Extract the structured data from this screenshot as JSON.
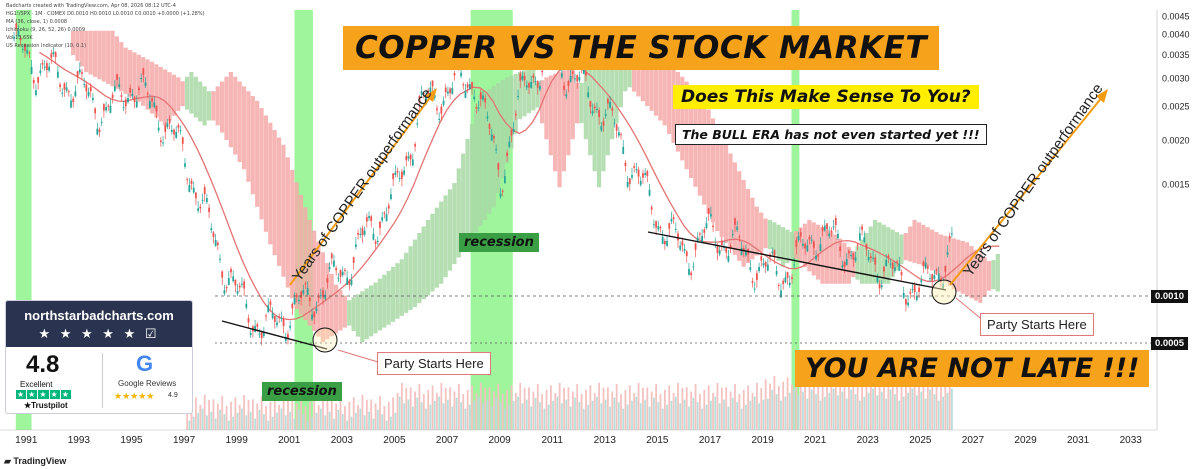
{
  "header": {
    "line1": "Badcharts created with TradingView.com, Apr 08, 2026 08:12 UTC-4",
    "line2": "HG1!/SPX · 1M · COMEX  D0.0010  H0.0010  L0.0010  C0.0010  +0.0000 (+1.28%)",
    "line3": "MA (36, close, 1)  0.0008",
    "line4": "Ichimoku (9, 26, 52, 26)  0.0009",
    "line5": "Vol  13.65K",
    "line6": "US Recession Indicator (10, 0.1)"
  },
  "annotations": {
    "title": "COPPER VS THE STOCK MARKET",
    "question": "Does This Make Sense To You?",
    "bull_note": "The BULL ERA has not even started yet !!!",
    "not_late": "YOU ARE NOT LATE !!!",
    "outperf_left": "Years of COPPER outperformance",
    "outperf_right": "Years of COPPER outperformance",
    "party_left": "Party Starts Here",
    "party_right": "Party Starts Here",
    "recession_2008": "recession",
    "recession_2001": "recession"
  },
  "price_tags": {
    "upper": "0.0010",
    "lower": "0.0005"
  },
  "badge": {
    "site": "northstarbadcharts.com",
    "stars": "★ ★ ★ ★ ★ ☑",
    "score": "4.8",
    "rating_word": "Excellent",
    "trustpilot": "★Trustpilot",
    "google": "G",
    "google_reviews": "Google Reviews",
    "google_score": "4.9"
  },
  "footer": {
    "brand": "TradingView"
  },
  "colors": {
    "candle_up": "#26a69a",
    "candle_down": "#ef5350",
    "cloud_bear": "#f6a9a9",
    "cloud_bull": "#a8d8a6",
    "recession": "#7ef17a",
    "ma": "#e57373",
    "arrow": "#f39c12"
  },
  "chart_data": {
    "type": "line",
    "series_name": "HG1!/SPX",
    "x": [
      1990.5,
      1991,
      1992,
      1993,
      1994,
      1995,
      1996,
      1997,
      1998,
      1999,
      2000,
      2001,
      2002,
      2003,
      2004,
      2005,
      2006,
      2007,
      2008,
      2009,
      2010,
      2011,
      2012,
      2013,
      2014,
      2015,
      2016,
      2017,
      2018,
      2019,
      2020,
      2021,
      2022,
      2023,
      2024,
      2025,
      2026.2
    ],
    "y": [
      0.0038,
      0.0034,
      0.0031,
      0.0028,
      0.0024,
      0.0029,
      0.0024,
      0.0018,
      0.0011,
      0.00072,
      0.00058,
      0.00065,
      0.00073,
      0.00085,
      0.0011,
      0.0014,
      0.0025,
      0.0028,
      0.003,
      0.0016,
      0.003,
      0.0035,
      0.0029,
      0.0024,
      0.0017,
      0.0012,
      0.00095,
      0.0011,
      0.001,
      0.00085,
      0.00085,
      0.0011,
      0.001,
      0.00095,
      0.00082,
      0.00075,
      0.001
    ],
    "xlim": [
      1990,
      2034
    ],
    "ylim": [
      0.0003,
      0.0047
    ],
    "y_scale": "log",
    "x_ticks": [
      "1991",
      "1993",
      "1995",
      "1997",
      "1999",
      "2001",
      "2003",
      "2005",
      "2007",
      "2009",
      "2011",
      "2013",
      "2015",
      "2017",
      "2019",
      "2021",
      "2023",
      "2025",
      "2027",
      "2029",
      "2031",
      "2033"
    ],
    "y_ticks": [
      "0.0045",
      "0.0040",
      "0.0035",
      "0.0030",
      "0.0025",
      "0.0020",
      "0.0015",
      "0.0010",
      "0.0005"
    ],
    "recessions": [
      [
        1990.6,
        1991.2
      ],
      [
        2001.2,
        2001.9
      ],
      [
        2007.9,
        2009.5
      ],
      [
        2020.1,
        2020.4
      ]
    ],
    "grid": false,
    "legend": "none"
  }
}
